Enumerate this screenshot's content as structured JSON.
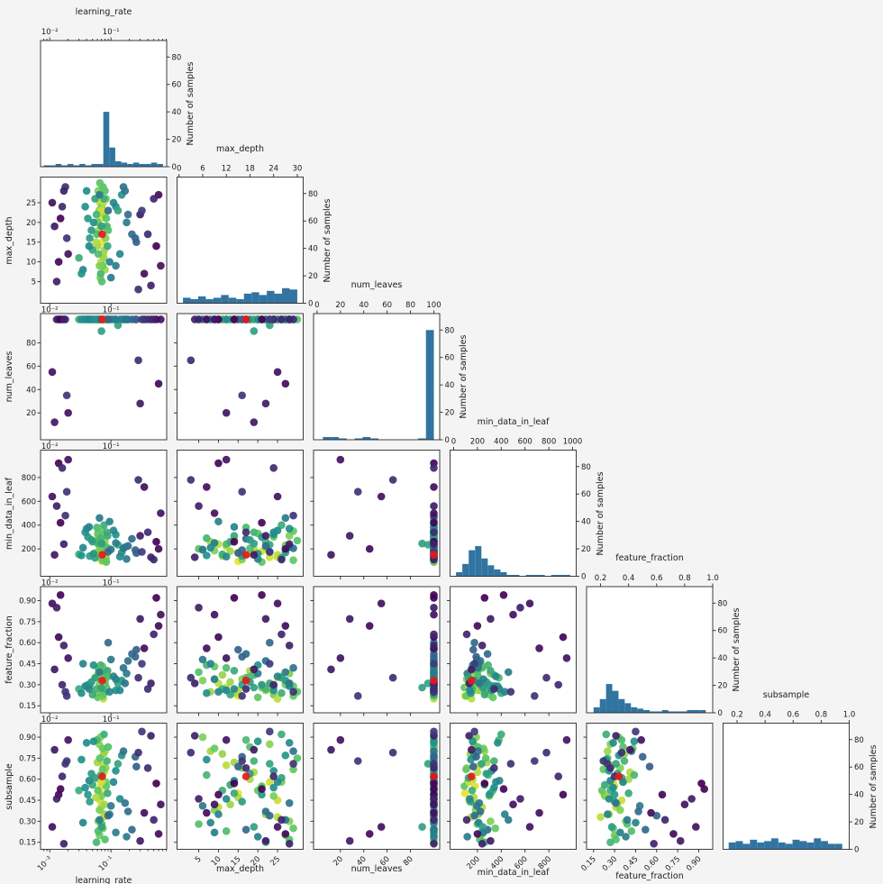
{
  "figure": {
    "background": "#f4f4f4",
    "plot_background": "#ffffff",
    "bar_color": "#3274a1",
    "spine_color": "#2b2b2b",
    "text_color": "#1a1a1a",
    "best_color": "#e31a1c",
    "point_radius": 4.3,
    "point_opacity": 0.92
  },
  "chart_data": {
    "type": "scatter",
    "subtype": "pairplot-matrix",
    "diagonal": "histogram",
    "lower_triangle": "scatter",
    "colormap": "viridis",
    "count_axis": {
      "label": "Number of samples",
      "ticks": [
        0,
        20,
        40,
        60,
        80
      ],
      "ylim": [
        0,
        92
      ]
    },
    "variables": [
      {
        "name": "learning_rate",
        "scale": "log",
        "domain": [
          -2.15,
          -0.09
        ],
        "ticks": [
          -2,
          -1
        ],
        "tick_labels": [
          "10⁻²",
          "10⁻¹"
        ],
        "diag_ticks": [
          -2,
          -1
        ],
        "diag_tick_labels": [
          "10⁻²",
          "10⁻¹"
        ],
        "hist": {
          "start": -2.1,
          "end": -0.15,
          "counts": [
            1,
            1,
            2,
            1,
            2,
            1,
            2,
            1,
            2,
            2,
            40,
            14,
            4,
            3,
            2,
            3,
            2,
            2,
            3,
            2
          ]
        }
      },
      {
        "name": "max_depth",
        "scale": "linear",
        "domain": [
          -0.5,
          31.5
        ],
        "ticks": [
          5,
          10,
          15,
          20,
          25
        ],
        "tick_labels": [
          "5",
          "10",
          "15",
          "20",
          "25"
        ],
        "diag_ticks": [
          0,
          6,
          12,
          18,
          24,
          30
        ],
        "diag_tick_labels": [
          "0",
          "6",
          "12",
          "18",
          "24",
          "30"
        ],
        "hist": {
          "start": 1,
          "end": 30,
          "counts": [
            4,
            3,
            5,
            3,
            4,
            6,
            4,
            3,
            7,
            8,
            6,
            9,
            7,
            11,
            10
          ]
        }
      },
      {
        "name": "num_leaves",
        "scale": "linear",
        "domain": [
          -3,
          105
        ],
        "ticks": [
          20,
          40,
          60,
          80
        ],
        "tick_labels": [
          "20",
          "40",
          "60",
          "80"
        ],
        "diag_ticks": [
          0,
          20,
          40,
          60,
          80,
          100
        ],
        "diag_tick_labels": [
          "0",
          "20",
          "40",
          "60",
          "80",
          "100"
        ],
        "hist": {
          "start": 5,
          "end": 100,
          "counts": [
            2,
            2,
            1,
            0,
            1,
            2,
            1,
            0,
            0,
            0,
            0,
            0,
            1,
            80
          ]
        }
      },
      {
        "name": "min_data_in_leaf",
        "scale": "linear",
        "domain": [
          -30,
          1030
        ],
        "ticks": [
          200,
          400,
          600,
          800
        ],
        "tick_labels": [
          "200",
          "400",
          "600",
          "800"
        ],
        "diag_ticks": [
          0,
          200,
          400,
          600,
          800,
          1000
        ],
        "diag_tick_labels": [
          "0",
          "200",
          "400",
          "600",
          "800",
          "1000"
        ],
        "hist": {
          "start": 20,
          "end": 980,
          "counts": [
            3,
            9,
            19,
            22,
            13,
            8,
            5,
            3,
            1,
            1,
            0,
            1,
            1,
            1,
            0,
            1,
            1,
            1
          ]
        }
      },
      {
        "name": "feature_fraction",
        "scale": "linear",
        "domain": [
          0.1,
          1.0
        ],
        "ticks": [
          0.15,
          0.3,
          0.45,
          0.6,
          0.75,
          0.9
        ],
        "tick_labels": [
          "0.15",
          "0.30",
          "0.45",
          "0.60",
          "0.75",
          "0.90"
        ],
        "diag_ticks": [
          0.2,
          0.4,
          0.6,
          0.8,
          1.0
        ],
        "diag_tick_labels": [
          "0.2",
          "0.4",
          "0.6",
          "0.8",
          "1.0"
        ],
        "hist": {
          "start": 0.15,
          "end": 0.95,
          "counts": [
            4,
            10,
            21,
            16,
            10,
            7,
            4,
            3,
            2,
            1,
            1,
            2,
            1,
            1,
            1,
            2,
            2,
            2
          ]
        }
      },
      {
        "name": "subsample",
        "scale": "linear",
        "domain": [
          0.1,
          1.0
        ],
        "ticks": [
          0.15,
          0.3,
          0.45,
          0.6,
          0.75,
          0.9
        ],
        "tick_labels": [
          "0.15",
          "0.30",
          "0.45",
          "0.60",
          "0.75",
          "0.90"
        ],
        "diag_ticks": [
          0.2,
          0.4,
          0.6,
          0.8,
          1.0
        ],
        "diag_tick_labels": [
          "0.2",
          "0.4",
          "0.6",
          "0.8",
          "1.0"
        ],
        "hist": {
          "start": 0.14,
          "end": 0.95,
          "counts": [
            5,
            6,
            4,
            7,
            5,
            6,
            8,
            5,
            4,
            7,
            6,
            5,
            8,
            6,
            4,
            4
          ]
        }
      }
    ],
    "best_index": 0,
    "points": [
      [
        0.072,
        17,
        100,
        150,
        0.33,
        0.62,
        1.0
      ],
      [
        0.068,
        21,
        100,
        180,
        0.3,
        0.55,
        0.95
      ],
      [
        0.075,
        12,
        100,
        220,
        0.28,
        0.7,
        0.9
      ],
      [
        0.066,
        25,
        100,
        130,
        0.35,
        0.45,
        0.92
      ],
      [
        0.08,
        8,
        100,
        260,
        0.25,
        0.8,
        0.85
      ],
      [
        0.062,
        28,
        100,
        310,
        0.38,
        0.3,
        0.8
      ],
      [
        0.071,
        15,
        100,
        95,
        0.22,
        0.5,
        0.97
      ],
      [
        0.077,
        19,
        100,
        200,
        0.41,
        0.65,
        0.88
      ],
      [
        0.064,
        23,
        100,
        170,
        0.27,
        0.85,
        0.82
      ],
      [
        0.069,
        10,
        100,
        240,
        0.31,
        0.4,
        0.9
      ],
      [
        0.083,
        26,
        100,
        120,
        0.36,
        0.58,
        0.78
      ],
      [
        0.06,
        14,
        100,
        280,
        0.24,
        0.72,
        0.86
      ],
      [
        0.074,
        29,
        100,
        350,
        0.29,
        0.25,
        0.75
      ],
      [
        0.067,
        6,
        100,
        190,
        0.33,
        0.9,
        0.8
      ],
      [
        0.079,
        22,
        100,
        210,
        0.26,
        0.35,
        0.83
      ],
      [
        0.063,
        18,
        100,
        160,
        0.4,
        0.6,
        0.87
      ],
      [
        0.07,
        24,
        100,
        300,
        0.23,
        0.48,
        0.79
      ],
      [
        0.076,
        11,
        100,
        140,
        0.37,
        0.78,
        0.84
      ],
      [
        0.065,
        27,
        100,
        230,
        0.3,
        0.2,
        0.77
      ],
      [
        0.082,
        16,
        100,
        110,
        0.34,
        0.68,
        0.81
      ],
      [
        0.061,
        20,
        100,
        330,
        0.21,
        0.52,
        0.74
      ],
      [
        0.073,
        9,
        100,
        250,
        0.43,
        0.82,
        0.76
      ],
      [
        0.078,
        13,
        100,
        180,
        0.32,
        0.42,
        0.85
      ],
      [
        0.066,
        30,
        100,
        270,
        0.25,
        0.75,
        0.72
      ],
      [
        0.071,
        5,
        100,
        200,
        0.39,
        0.28,
        0.7
      ],
      [
        0.084,
        21,
        100,
        90,
        0.28,
        0.55,
        0.73
      ],
      [
        0.059,
        17,
        100,
        380,
        0.35,
        0.88,
        0.68
      ],
      [
        0.075,
        25,
        100,
        150,
        0.2,
        0.33,
        0.9
      ],
      [
        0.068,
        7,
        100,
        290,
        0.44,
        0.63,
        0.66
      ],
      [
        0.08,
        28,
        100,
        220,
        0.31,
        0.17,
        0.71
      ],
      [
        0.057,
        15,
        100,
        170,
        0.26,
        0.47,
        0.88
      ],
      [
        0.086,
        19,
        100,
        340,
        0.37,
        0.73,
        0.64
      ],
      [
        0.07,
        23,
        100,
        130,
        0.29,
        0.58,
        0.93
      ],
      [
        0.062,
        12,
        100,
        240,
        0.42,
        0.23,
        0.69
      ],
      [
        0.077,
        26,
        100,
        400,
        0.24,
        0.92,
        0.62
      ],
      [
        0.065,
        9,
        100,
        185,
        0.34,
        0.38,
        0.8
      ],
      [
        0.073,
        29,
        100,
        105,
        0.22,
        0.67,
        0.75
      ],
      [
        0.088,
        14,
        100,
        310,
        0.4,
        0.5,
        0.6
      ],
      [
        0.058,
        22,
        100,
        260,
        0.27,
        0.15,
        0.65
      ],
      [
        0.09,
        18,
        100,
        205,
        0.36,
        0.83,
        0.7
      ],
      [
        0.045,
        16,
        100,
        140,
        0.3,
        0.44,
        0.55
      ],
      [
        0.12,
        24,
        100,
        320,
        0.26,
        0.66,
        0.5
      ],
      [
        0.035,
        8,
        100,
        210,
        0.45,
        0.29,
        0.45
      ],
      [
        0.15,
        27,
        100,
        170,
        0.33,
        0.77,
        0.52
      ],
      [
        0.05,
        13,
        100,
        260,
        0.23,
        0.56,
        0.6
      ],
      [
        0.18,
        20,
        100,
        115,
        0.38,
        0.19,
        0.42
      ],
      [
        0.04,
        28,
        100,
        370,
        0.29,
        0.86,
        0.48
      ],
      [
        0.1,
        6,
        100,
        195,
        0.48,
        0.41,
        0.4
      ],
      [
        0.13,
        23,
        95,
        235,
        0.31,
        0.71,
        0.58
      ],
      [
        0.03,
        11,
        100,
        155,
        0.27,
        0.52,
        0.62
      ],
      [
        0.22,
        17,
        100,
        285,
        0.52,
        0.24,
        0.35
      ],
      [
        0.055,
        26,
        100,
        125,
        0.35,
        0.61,
        0.57
      ],
      [
        0.095,
        10,
        100,
        430,
        0.25,
        0.35,
        0.44
      ],
      [
        0.16,
        29,
        100,
        205,
        0.42,
        0.8,
        0.38
      ],
      [
        0.042,
        21,
        100,
        300,
        0.3,
        0.49,
        0.53
      ],
      [
        0.26,
        15,
        100,
        165,
        0.55,
        0.69,
        0.3
      ],
      [
        0.07,
        19,
        90,
        245,
        0.28,
        0.26,
        0.56
      ],
      [
        0.11,
        25,
        100,
        355,
        0.36,
        0.58,
        0.46
      ],
      [
        0.033,
        7,
        100,
        145,
        0.24,
        0.74,
        0.5
      ],
      [
        0.19,
        22,
        100,
        225,
        0.47,
        0.37,
        0.36
      ],
      [
        0.048,
        18,
        100,
        275,
        0.32,
        0.64,
        0.54
      ],
      [
        0.14,
        12,
        100,
        135,
        0.26,
        0.46,
        0.47
      ],
      [
        0.065,
        27,
        100,
        460,
        0.39,
        0.31,
        0.41
      ],
      [
        0.25,
        16,
        100,
        190,
        0.5,
        0.76,
        0.32
      ],
      [
        0.038,
        24,
        100,
        340,
        0.29,
        0.54,
        0.49
      ],
      [
        0.12,
        9,
        100,
        250,
        0.34,
        0.22,
        0.43
      ],
      [
        0.052,
        20,
        100,
        160,
        0.44,
        0.87,
        0.51
      ],
      [
        0.17,
        28,
        100,
        215,
        0.31,
        0.43,
        0.39
      ],
      [
        0.044,
        14,
        100,
        385,
        0.27,
        0.59,
        0.45
      ],
      [
        0.09,
        23,
        100,
        175,
        0.6,
        0.34,
        0.34
      ],
      [
        0.011,
        25,
        55,
        640,
        0.88,
        0.26,
        0.05
      ],
      [
        0.45,
        4,
        100,
        130,
        0.31,
        0.91,
        0.1
      ],
      [
        0.014,
        10,
        100,
        920,
        0.64,
        0.49,
        0.02
      ],
      [
        0.3,
        22,
        28,
        310,
        0.77,
        0.16,
        0.08
      ],
      [
        0.018,
        29,
        100,
        480,
        0.25,
        0.71,
        0.15
      ],
      [
        0.55,
        14,
        100,
        260,
        0.92,
        0.57,
        0.0
      ],
      [
        0.012,
        19,
        12,
        150,
        0.41,
        0.81,
        0.07
      ],
      [
        0.35,
        7,
        100,
        720,
        0.56,
        0.36,
        0.04
      ],
      [
        0.016,
        24,
        100,
        880,
        0.3,
        0.62,
        0.12
      ],
      [
        0.6,
        27,
        45,
        200,
        0.72,
        0.21,
        0.03
      ],
      [
        0.013,
        5,
        100,
        560,
        0.85,
        0.46,
        0.09
      ],
      [
        0.4,
        17,
        100,
        340,
        0.27,
        0.68,
        0.13
      ],
      [
        0.02,
        12,
        20,
        950,
        0.49,
        0.88,
        0.06
      ],
      [
        0.5,
        26,
        100,
        110,
        0.66,
        0.31,
        0.11
      ],
      [
        0.015,
        21,
        100,
        420,
        0.94,
        0.53,
        0.01
      ],
      [
        0.28,
        3,
        65,
        780,
        0.35,
        0.79,
        0.14
      ],
      [
        0.017,
        28,
        100,
        240,
        0.58,
        0.14,
        0.1
      ],
      [
        0.65,
        9,
        100,
        500,
        0.8,
        0.42,
        0.05
      ],
      [
        0.019,
        16,
        35,
        680,
        0.22,
        0.73,
        0.16
      ],
      [
        0.32,
        23,
        100,
        175,
        0.45,
        0.94,
        0.18
      ]
    ]
  }
}
